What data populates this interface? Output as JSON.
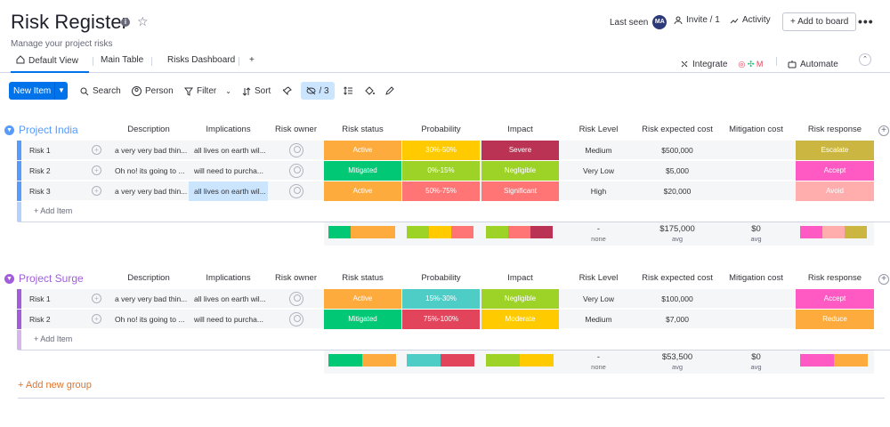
{
  "header": {
    "title": "Risk Register",
    "subtitle": "Manage your project risks",
    "last_seen": "Last seen",
    "avatar": "MA",
    "invite": "Invite / 1",
    "activity": "Activity",
    "add_to_board": "+ Add to board"
  },
  "tabs": [
    {
      "label": "Default View"
    },
    {
      "label": "Main Table"
    },
    {
      "label": "Risks Dashboard"
    },
    {
      "label": "+"
    }
  ],
  "tab_right": {
    "integrate": "Integrate",
    "automate": "Automate"
  },
  "toolbar": {
    "new_item": "New Item",
    "search": "Search",
    "person": "Person",
    "filter": "Filter",
    "sort": "Sort",
    "hide_count": "/ 3"
  },
  "columns": [
    "Description",
    "Implications",
    "Risk owner",
    "Risk status",
    "Probability",
    "Impact",
    "Risk Level",
    "Risk expected cost",
    "Mitigation cost",
    "Risk response"
  ],
  "colors": {
    "accent": "#0073ea",
    "orange": "#fdab3d",
    "green": "#00c875",
    "yellow": "#ffcb00",
    "red": "#e2445c",
    "salmon": "#ff7575",
    "darkred": "#bb3354",
    "lime": "#9cd326",
    "gold": "#cab641",
    "pink": "#ff5ac4",
    "lightpink": "#ffadad",
    "teal": "#4eccc6",
    "groupblue": "#579bfc",
    "grouppurple": "#a25ddc"
  },
  "groups": [
    {
      "name": "Project India",
      "color": "#579bfc",
      "rows": [
        {
          "name": "Risk 1",
          "desc": "a very very bad thin...",
          "impl": "all lives on earth wil...",
          "status": {
            "text": "Active",
            "color": "#fdab3d"
          },
          "prob": {
            "text": "30%-50%",
            "color": "#ffcb00"
          },
          "impact": {
            "text": "Severe",
            "color": "#bb3354"
          },
          "level": "Medium",
          "cost": "$500,000",
          "mit": "",
          "resp": {
            "text": "Escalate",
            "color": "#cab641"
          }
        },
        {
          "name": "Risk 2",
          "desc": "Oh no! its going to ...",
          "impl": "will need to purcha...",
          "status": {
            "text": "Mitigated",
            "color": "#00c875"
          },
          "prob": {
            "text": "0%-15%",
            "color": "#9cd326"
          },
          "impact": {
            "text": "Negligible",
            "color": "#9cd326"
          },
          "level": "Very Low",
          "cost": "$5,000",
          "mit": "",
          "resp": {
            "text": "Accept",
            "color": "#ff5ac4"
          }
        },
        {
          "name": "Risk 3",
          "desc": "a very very bad thin...",
          "impl": "all lives on earth wil...",
          "status": {
            "text": "Active",
            "color": "#fdab3d"
          },
          "prob": {
            "text": "50%-75%",
            "color": "#ff7575"
          },
          "impact": {
            "text": "Significant",
            "color": "#ff7575"
          },
          "level": "High",
          "cost": "$20,000",
          "mit": "",
          "resp": {
            "text": "Avoid",
            "color": "#ffadad"
          }
        }
      ],
      "add_item": "+ Add Item",
      "summary": {
        "level": "-",
        "level_sub": "none",
        "cost": "$175,000",
        "cost_sub": "avg",
        "mit": "$0",
        "mit_sub": "avg",
        "status": [
          {
            "c": "#00c875",
            "f": 0.333
          },
          {
            "c": "#fdab3d",
            "f": 0.667
          }
        ],
        "prob": [
          {
            "c": "#9cd326",
            "f": 0.333
          },
          {
            "c": "#ffcb00",
            "f": 0.333
          },
          {
            "c": "#ff7575",
            "f": 0.334
          }
        ],
        "impact": [
          {
            "c": "#9cd326",
            "f": 0.333
          },
          {
            "c": "#ff7575",
            "f": 0.333
          },
          {
            "c": "#bb3354",
            "f": 0.334
          }
        ],
        "resp": [
          {
            "c": "#ff5ac4",
            "f": 0.333
          },
          {
            "c": "#ffadad",
            "f": 0.333
          },
          {
            "c": "#cab641",
            "f": 0.334
          }
        ]
      }
    },
    {
      "name": "Project Surge",
      "color": "#a25ddc",
      "rows": [
        {
          "name": "Risk 1",
          "desc": "a very very bad thin...",
          "impl": "all lives on earth wil...",
          "status": {
            "text": "Active",
            "color": "#fdab3d"
          },
          "prob": {
            "text": "15%-30%",
            "color": "#4eccc6"
          },
          "impact": {
            "text": "Negligible",
            "color": "#9cd326"
          },
          "level": "Very Low",
          "cost": "$100,000",
          "mit": "",
          "resp": {
            "text": "Accept",
            "color": "#ff5ac4"
          }
        },
        {
          "name": "Risk 2",
          "desc": "Oh no! its going to ...",
          "impl": "will need to purcha...",
          "status": {
            "text": "Mitigated",
            "color": "#00c875"
          },
          "prob": {
            "text": "75%-100%",
            "color": "#e2445c"
          },
          "impact": {
            "text": "Moderate",
            "color": "#ffcb00"
          },
          "level": "Medium",
          "cost": "$7,000",
          "mit": "",
          "resp": {
            "text": "Reduce",
            "color": "#fdab3d"
          }
        }
      ],
      "add_item": "+ Add Item",
      "summary": {
        "level": "-",
        "level_sub": "none",
        "cost": "$53,500",
        "cost_sub": "avg",
        "mit": "$0",
        "mit_sub": "avg",
        "status": [
          {
            "c": "#00c875",
            "f": 0.5
          },
          {
            "c": "#fdab3d",
            "f": 0.5
          }
        ],
        "prob": [
          {
            "c": "#4eccc6",
            "f": 0.5
          },
          {
            "c": "#e2445c",
            "f": 0.5
          }
        ],
        "impact": [
          {
            "c": "#9cd326",
            "f": 0.5
          },
          {
            "c": "#ffcb00",
            "f": 0.5
          }
        ],
        "resp": [
          {
            "c": "#ff5ac4",
            "f": 0.5
          },
          {
            "c": "#fdab3d",
            "f": 0.5
          }
        ]
      }
    }
  ],
  "add_group": "+ Add new group"
}
